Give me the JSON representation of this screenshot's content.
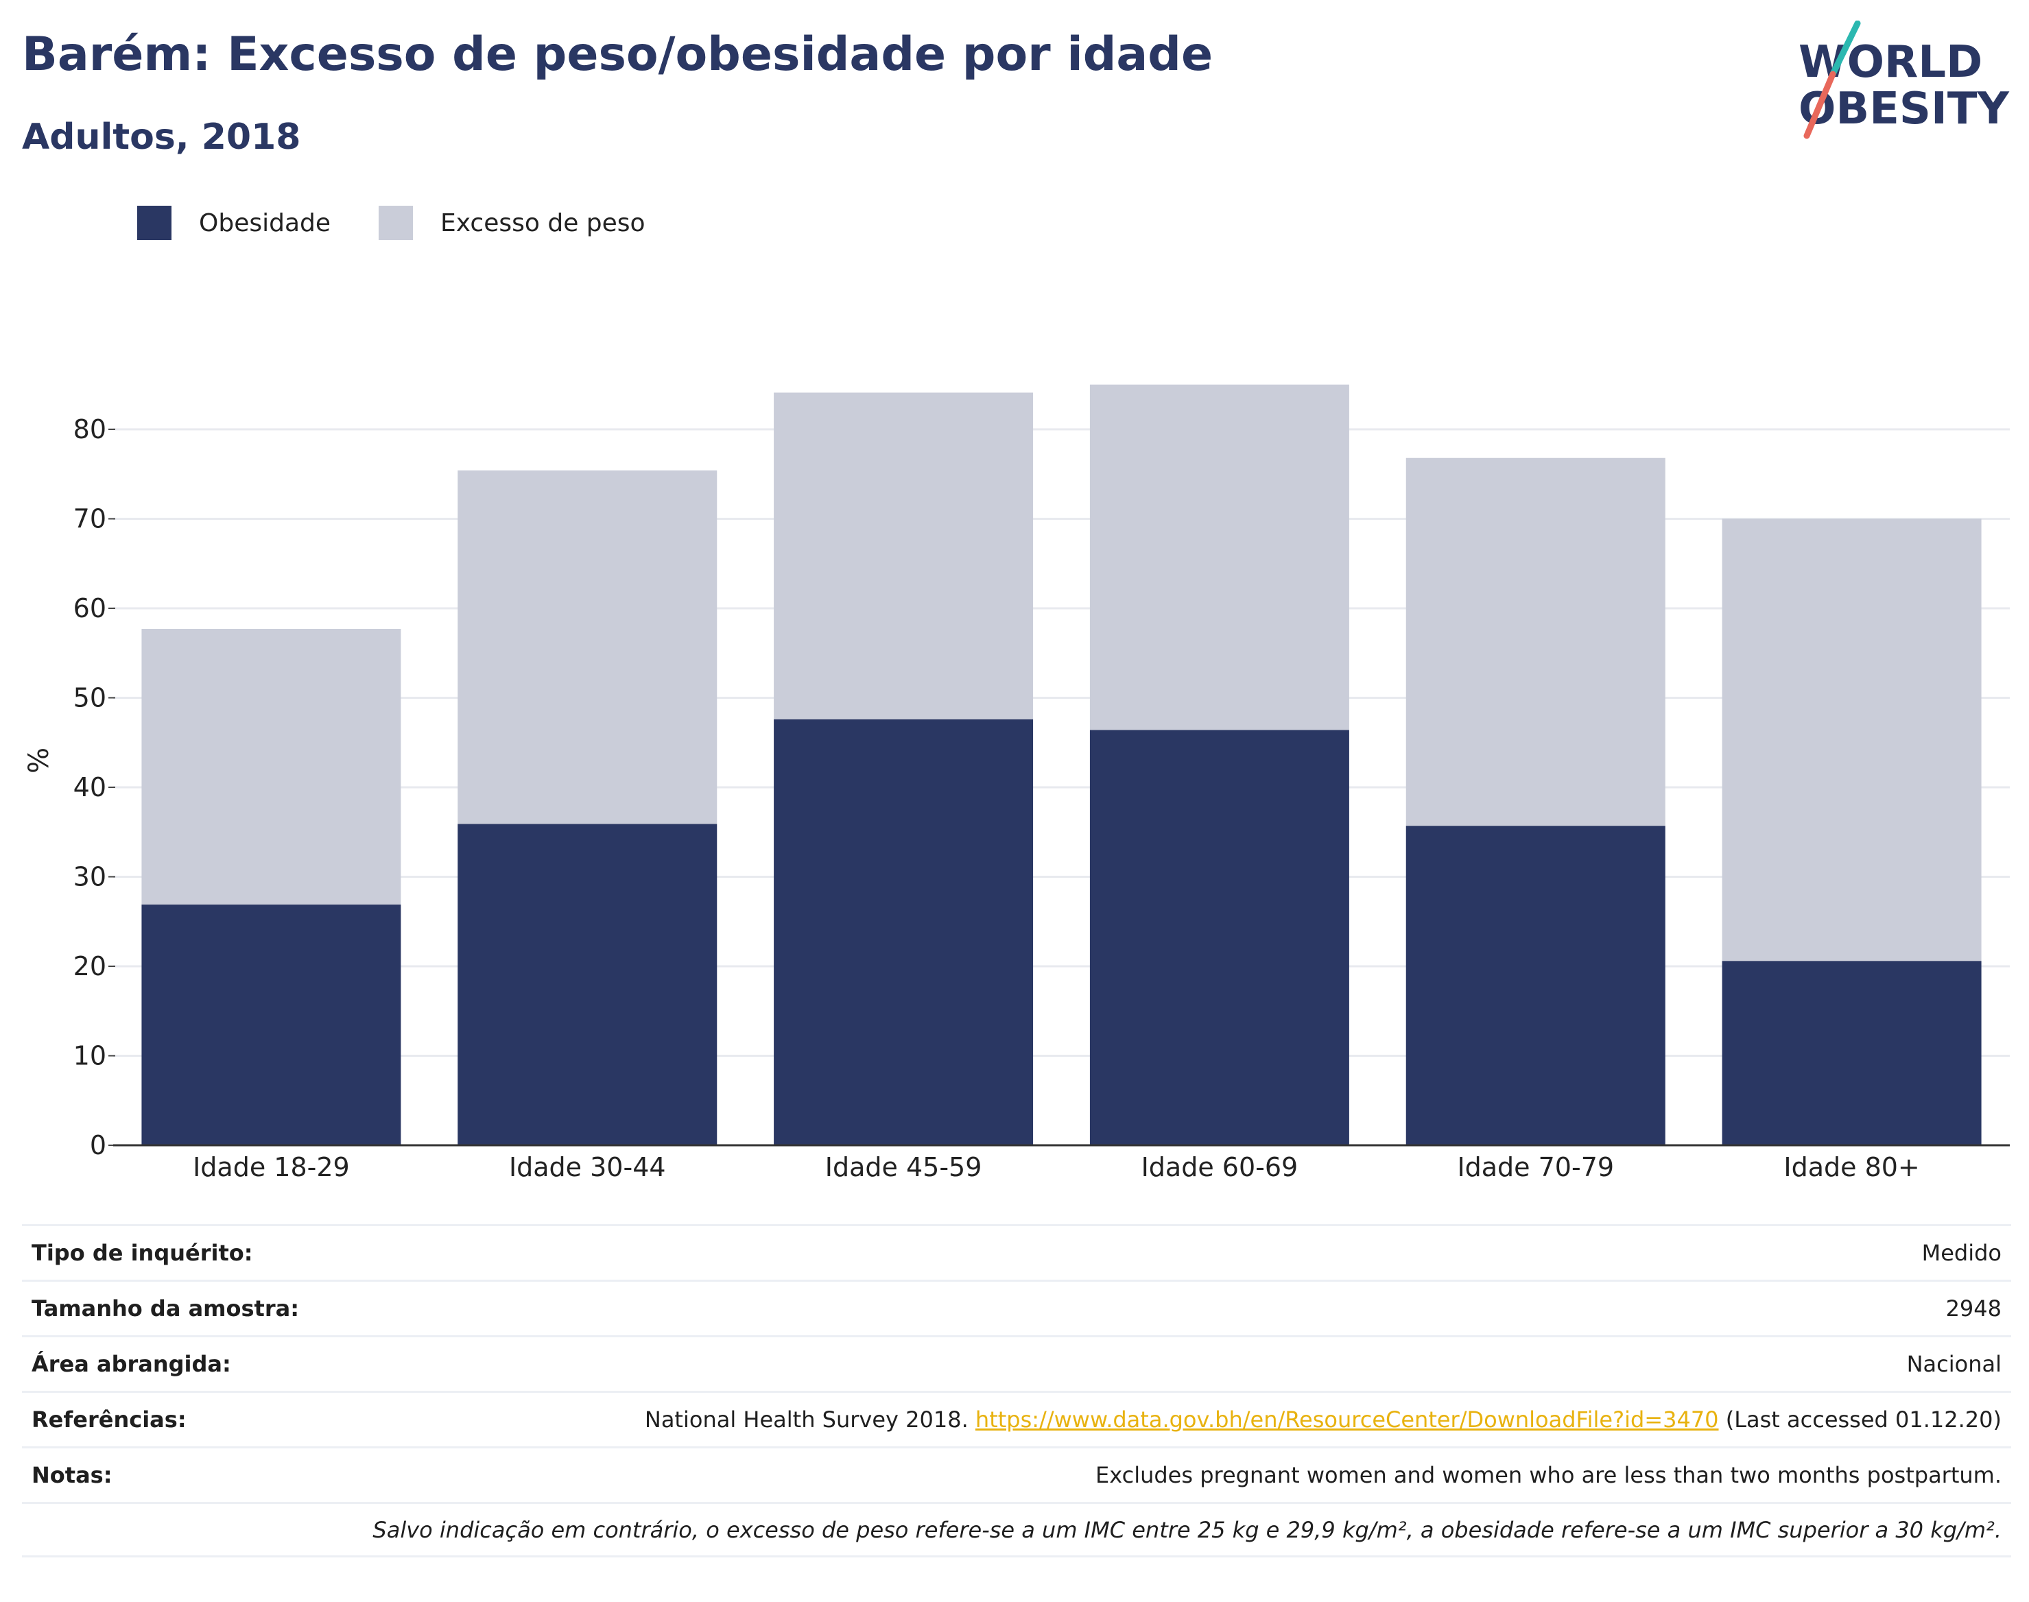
{
  "header": {
    "title": "Barém: Excesso de peso/obesidade por idade",
    "subtitle": "Adultos, 2018"
  },
  "logo": {
    "line1": "WORLD",
    "line2": "OBESITY",
    "colors": {
      "text": "#2a3763",
      "slash_top": "#2bb8b0",
      "slash_bottom": "#e8685b"
    }
  },
  "legend": {
    "items": [
      {
        "label": "Obesidade",
        "color": "#2a3763"
      },
      {
        "label": "Excesso de peso",
        "color": "#cacdd9"
      }
    ]
  },
  "chart_data": {
    "type": "bar",
    "stacked": true,
    "categories": [
      "Idade 18-29",
      "Idade 30-44",
      "Idade 45-59",
      "Idade 60-69",
      "Idade 70-79",
      "Idade 80+"
    ],
    "series": [
      {
        "name": "Obesidade",
        "color": "#2a3763",
        "values": [
          26.9,
          35.9,
          47.6,
          46.4,
          35.7,
          20.6
        ]
      },
      {
        "name": "Excesso de peso",
        "color": "#cacdd9",
        "values": [
          30.8,
          39.5,
          36.5,
          38.6,
          41.1,
          49.4
        ]
      }
    ],
    "ylabel": "%",
    "ylim": [
      0,
      90
    ],
    "yticks": [
      0,
      10,
      20,
      30,
      40,
      50,
      60,
      70,
      80
    ],
    "grid": true
  },
  "info": {
    "survey_type": {
      "label": "Tipo de inquérito:",
      "value": "Medido"
    },
    "sample_size": {
      "label": "Tamanho da amostra:",
      "value": "2948"
    },
    "area": {
      "label": "Área abrangida:",
      "value": "Nacional"
    },
    "references": {
      "label": "Referências:",
      "text_before": "National Health Survey 2018.",
      "link": "https://www.data.gov.bh/en/ResourceCenter/DownloadFile?id=3470",
      "text_after": "(Last accessed 01.12.20)"
    },
    "notes": {
      "label": "Notas:",
      "value": "Excludes pregnant women and women who are less than two months postpartum."
    },
    "footnote": "Salvo indicação em contrário, o excesso de peso refere-se a um IMC entre 25 kg e 29,9 kg/m², a obesidade refere-se a um IMC superior a 30 kg/m²."
  }
}
